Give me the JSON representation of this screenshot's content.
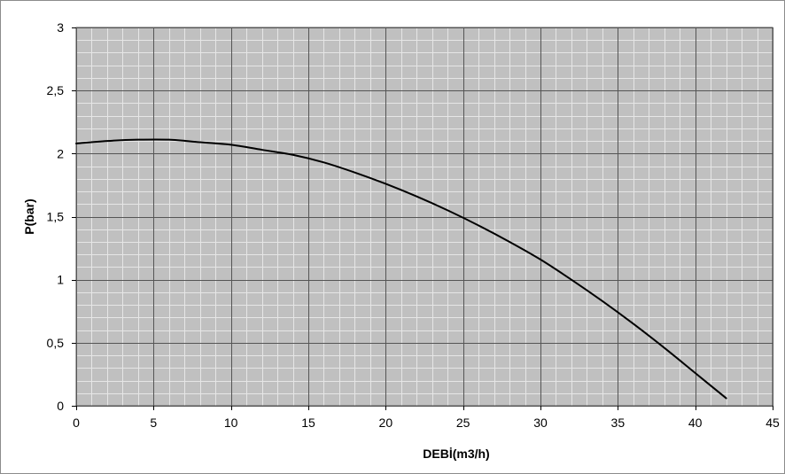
{
  "chart_data": {
    "type": "line",
    "title": "",
    "xlabel": "DEBİ(m3/h)",
    "ylabel": "P(bar)",
    "xlim": [
      0,
      45
    ],
    "ylim": [
      0,
      3
    ],
    "x_ticks": [
      0,
      5,
      10,
      15,
      20,
      25,
      30,
      35,
      40,
      45
    ],
    "y_ticks": [
      0,
      0.5,
      1,
      1.5,
      2,
      2.5,
      3
    ],
    "x_tick_labels": [
      "0",
      "5",
      "10",
      "15",
      "20",
      "25",
      "30",
      "35",
      "40",
      "45"
    ],
    "y_tick_labels": [
      "0",
      "0,5",
      "1",
      "1,5",
      "2",
      "2,5",
      "3"
    ],
    "x_minor_step": 1,
    "y_minor_step": 0.1,
    "grid": true,
    "colors": {
      "plot_background": "#c0c0c0",
      "minor_grid": "#e6e6e6",
      "major_grid": "#555555",
      "curve": "#000000"
    },
    "series": [
      {
        "x": [
          0,
          2,
          4,
          6,
          8,
          10,
          12,
          14,
          16,
          18,
          20,
          22,
          24,
          26,
          28,
          30,
          32,
          34,
          36,
          38,
          40,
          42
        ],
        "y": [
          2.08,
          2.1,
          2.11,
          2.11,
          2.09,
          2.07,
          2.03,
          1.99,
          1.93,
          1.85,
          1.76,
          1.66,
          1.55,
          1.43,
          1.3,
          1.16,
          1.0,
          0.83,
          0.65,
          0.46,
          0.26,
          0.06
        ]
      }
    ]
  }
}
